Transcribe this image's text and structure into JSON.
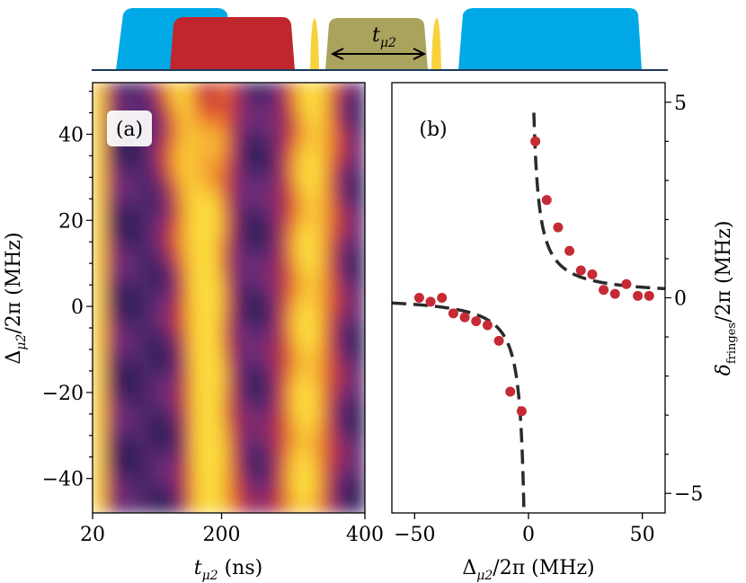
{
  "pulse_sequence": {
    "label": "t_μ2",
    "label_base": "t",
    "label_sub": "μ2",
    "colors": {
      "blue": "#00a9e6",
      "red": "#c0262e",
      "olive": "#a9a35e",
      "yellow": "#f7d23c",
      "baseline": "#1c3a5a"
    }
  },
  "chart_data": [
    {
      "id": "a",
      "type": "heatmap",
      "panel_label": "(a)",
      "xlabel_base": "t",
      "xlabel_sub": "μ2",
      "xlabel_unit": " (ns)",
      "ylabel_base": "Δ",
      "ylabel_sub": "μ2",
      "ylabel_rest": "/2π (MHz)",
      "xlim": [
        20,
        400
      ],
      "ylim": [
        -48,
        52
      ],
      "x_ticks": [
        20,
        200,
        400
      ],
      "x_tick_labels": [
        "20",
        "200",
        "400"
      ],
      "y_ticks": [
        40,
        20,
        0,
        -20,
        -40
      ],
      "y_tick_labels": [
        "40",
        "20",
        "0",
        "−20",
        "−40"
      ],
      "colormap": [
        "#2a1e55",
        "#6a2c7a",
        "#b5284a",
        "#e8602a",
        "#f7b234",
        "#fbdc3c"
      ],
      "bands": [
        {
          "x_at_top": 28,
          "x_at_bottom": 28,
          "width": 14,
          "amplitude": 1.0
        },
        {
          "x_at_top": 145,
          "x_at_bottom": 198,
          "width": 32,
          "amplitude": 0.85
        },
        {
          "x_at_top": 330,
          "x_at_bottom": 315,
          "width": 36,
          "amplitude": 0.95
        },
        {
          "x_at_top": 205,
          "x_at_bottom": 170,
          "width": 22,
          "amplitude": 0.55
        }
      ]
    },
    {
      "id": "b",
      "type": "scatter",
      "panel_label": "(b)",
      "xlabel_base": "Δ",
      "xlabel_sub": "μ2",
      "xlabel_rest": "/2π (MHz)",
      "ylabel_base": "δ",
      "ylabel_sub": "fringes",
      "ylabel_rest": "/2π (MHz)",
      "xlim": [
        -60,
        60
      ],
      "ylim": [
        -5.5,
        5.5
      ],
      "x_ticks": [
        -50,
        0,
        50
      ],
      "x_tick_labels": [
        "−50",
        "0",
        "50"
      ],
      "y_ticks": [
        5,
        0,
        -5
      ],
      "y_tick_labels": [
        "5",
        "0",
        "−5"
      ],
      "points_color": "#c62a35",
      "fit_color": "#2b2b2b",
      "series": [
        {
          "name": "measured",
          "x": [
            -48,
            -43,
            -38,
            -33,
            -28,
            -23,
            -18,
            -13,
            -8,
            -3,
            3,
            8,
            13,
            18,
            23,
            28,
            33,
            38,
            43,
            48,
            53
          ],
          "y": [
            0.0,
            -0.1,
            0.0,
            -0.4,
            -0.5,
            -0.6,
            -0.7,
            -1.1,
            -2.4,
            -2.9,
            4.0,
            2.5,
            1.8,
            1.2,
            0.7,
            0.6,
            0.2,
            0.1,
            0.35,
            0.05,
            0.05
          ]
        },
        {
          "name": "fit",
          "model": "a/x + b",
          "a": 11,
          "b": 0.05,
          "x_range": [
            -60,
            60
          ]
        }
      ]
    }
  ]
}
